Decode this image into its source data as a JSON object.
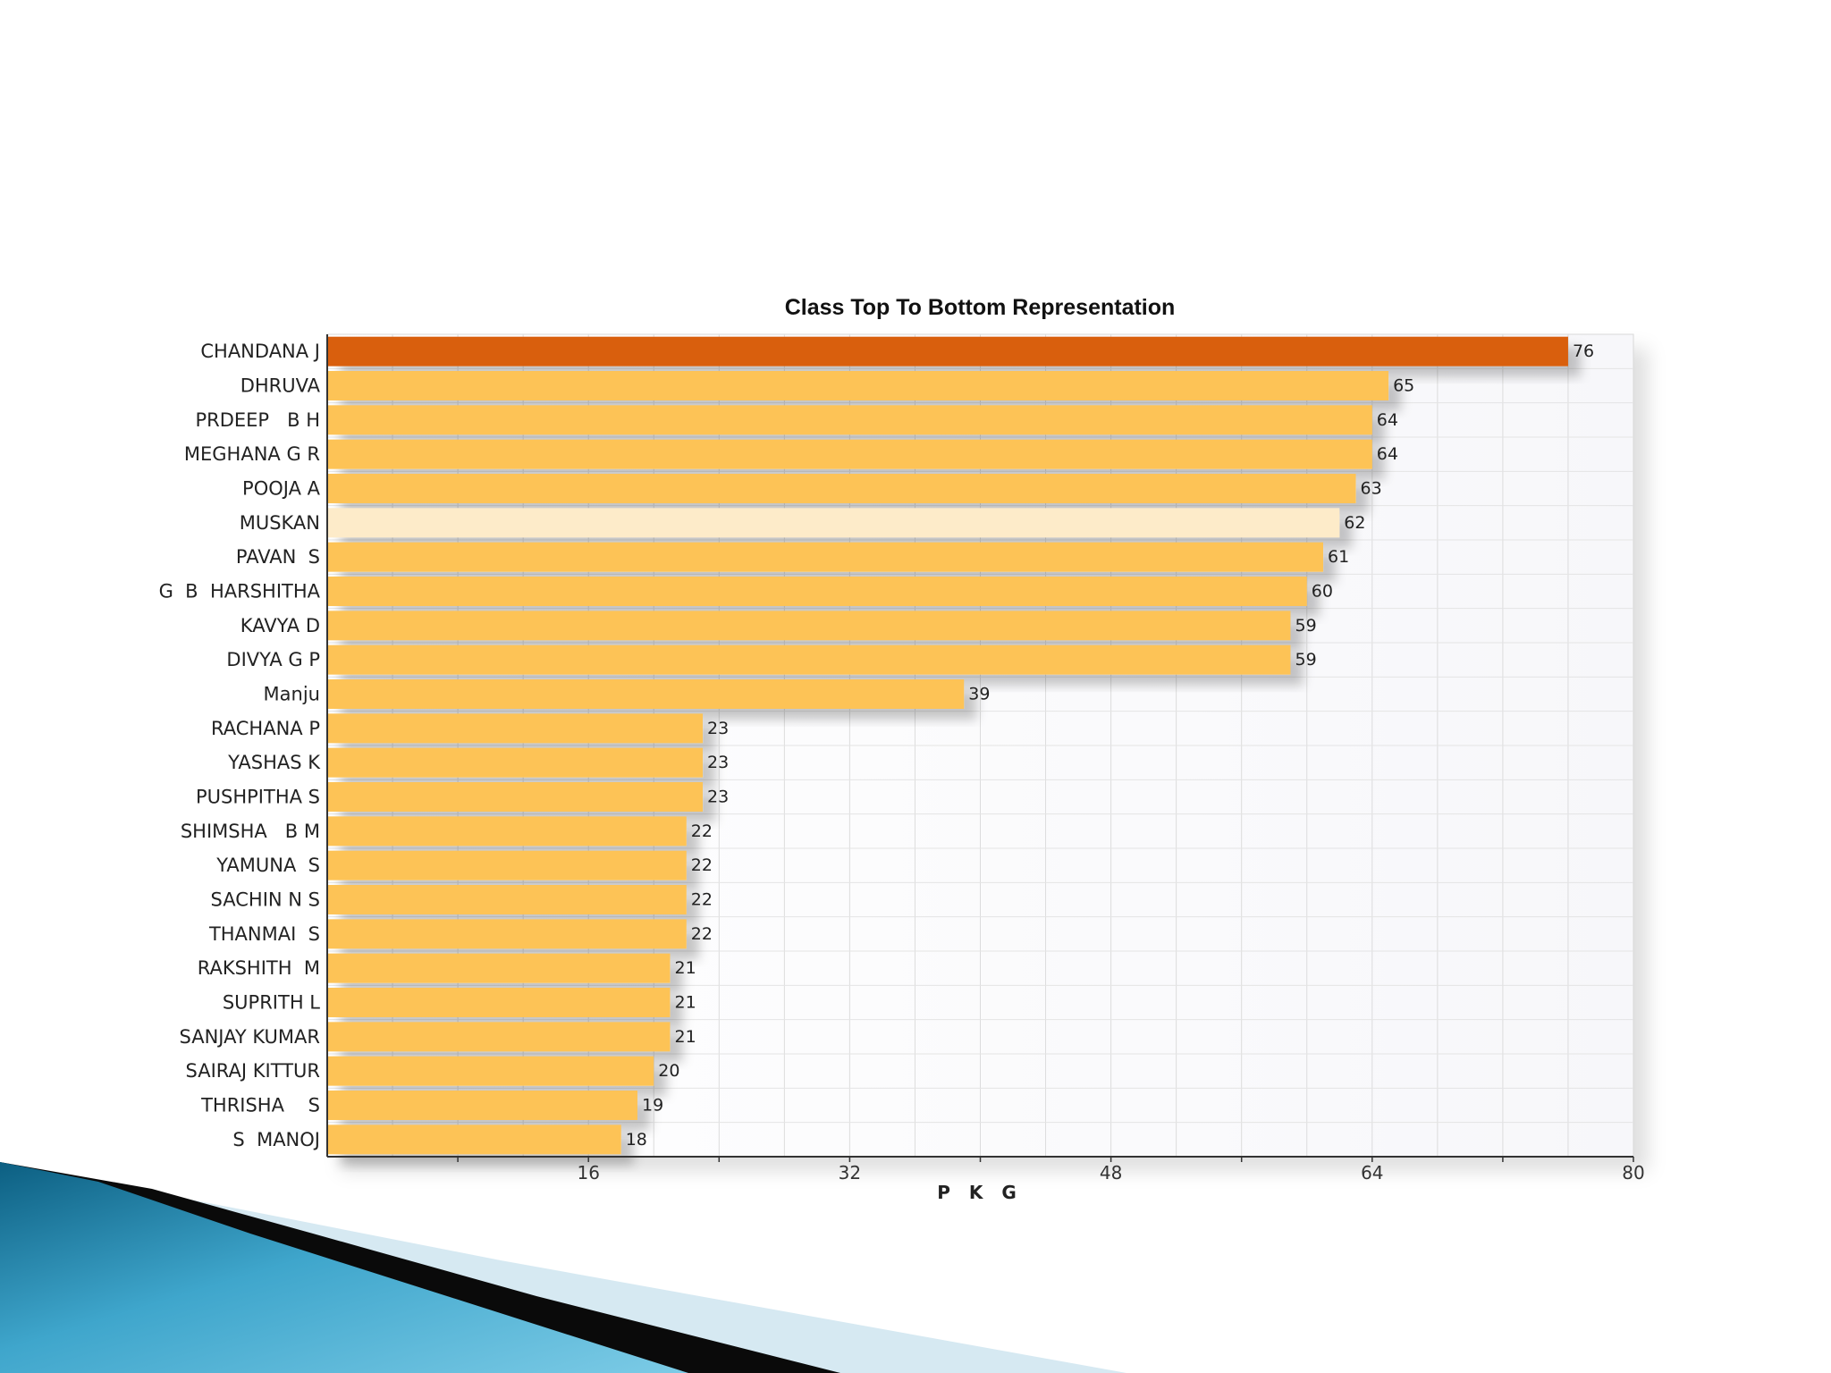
{
  "chart_data": {
    "type": "bar",
    "orientation": "horizontal",
    "title": "Class Top To Bottom Representation",
    "xlabel": "P K G",
    "ylabel": "",
    "xlim": [
      0,
      80
    ],
    "ticks": [
      16,
      32,
      48,
      64,
      80
    ],
    "grid": true,
    "categories": [
      "CHANDANA J",
      "DHRUVA",
      "PRDEEP   B H",
      "MEGHANA G R",
      "POOJA A",
      "MUSKAN",
      "PAVAN  S",
      "G  B  HARSHITHA",
      "KAVYA D",
      "DIVYA G P",
      "Manju",
      "RACHANA P",
      "YASHAS K",
      "PUSHPITHA S",
      "SHIMSHA   B M",
      "YAMUNA  S",
      "SACHIN N S",
      "THANMAI  S",
      "RAKSHITH  M",
      "SUPRITH L",
      "SANJAY KUMAR",
      "SAIRAJ KITTUR",
      "THRISHA    S",
      "S  MANOJ"
    ],
    "values": [
      76,
      65,
      64,
      64,
      63,
      62,
      61,
      60,
      59,
      59,
      39,
      23,
      23,
      23,
      22,
      22,
      22,
      22,
      21,
      21,
      21,
      20,
      19,
      18
    ],
    "colors": {
      "default": "#FDC357",
      "highlight_top": "#D95F0E",
      "highlight_light": "#FDEBC9"
    },
    "highlight_top_index": 0,
    "highlight_light_index": 5
  }
}
